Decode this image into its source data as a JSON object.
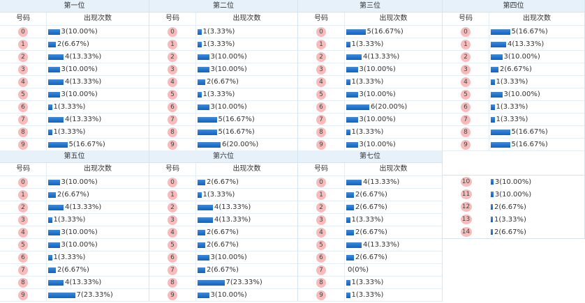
{
  "colors": {
    "ball": "#f6bcbc",
    "bar": "#1a6fcc",
    "header_bg": "#e6f1fa"
  },
  "col_headers": {
    "number": "号码",
    "count": "出现次数"
  },
  "positions": [
    {
      "title": "第一位",
      "rows": [
        {
          "n": "0",
          "c": 3,
          "p": "3(10.00%)"
        },
        {
          "n": "1",
          "c": 2,
          "p": "2(6.67%)"
        },
        {
          "n": "2",
          "c": 4,
          "p": "4(13.33%)"
        },
        {
          "n": "3",
          "c": 3,
          "p": "3(10.00%)"
        },
        {
          "n": "4",
          "c": 4,
          "p": "4(13.33%)"
        },
        {
          "n": "5",
          "c": 3,
          "p": "3(10.00%)"
        },
        {
          "n": "6",
          "c": 1,
          "p": "1(3.33%)"
        },
        {
          "n": "7",
          "c": 4,
          "p": "4(13.33%)"
        },
        {
          "n": "8",
          "c": 1,
          "p": "1(3.33%)"
        },
        {
          "n": "9",
          "c": 5,
          "p": "5(16.67%)"
        }
      ]
    },
    {
      "title": "第二位",
      "rows": [
        {
          "n": "0",
          "c": 1,
          "p": "1(3.33%)"
        },
        {
          "n": "1",
          "c": 1,
          "p": "1(3.33%)"
        },
        {
          "n": "2",
          "c": 3,
          "p": "3(10.00%)"
        },
        {
          "n": "3",
          "c": 3,
          "p": "3(10.00%)"
        },
        {
          "n": "4",
          "c": 2,
          "p": "2(6.67%)"
        },
        {
          "n": "5",
          "c": 1,
          "p": "1(3.33%)"
        },
        {
          "n": "6",
          "c": 3,
          "p": "3(10.00%)"
        },
        {
          "n": "7",
          "c": 5,
          "p": "5(16.67%)"
        },
        {
          "n": "8",
          "c": 5,
          "p": "5(16.67%)"
        },
        {
          "n": "9",
          "c": 6,
          "p": "6(20.00%)"
        }
      ]
    },
    {
      "title": "第三位",
      "rows": [
        {
          "n": "0",
          "c": 5,
          "p": "5(16.67%)"
        },
        {
          "n": "1",
          "c": 1,
          "p": "1(3.33%)"
        },
        {
          "n": "2",
          "c": 4,
          "p": "4(13.33%)"
        },
        {
          "n": "3",
          "c": 3,
          "p": "3(10.00%)"
        },
        {
          "n": "4",
          "c": 1,
          "p": "1(3.33%)"
        },
        {
          "n": "5",
          "c": 3,
          "p": "3(10.00%)"
        },
        {
          "n": "6",
          "c": 6,
          "p": "6(20.00%)"
        },
        {
          "n": "7",
          "c": 3,
          "p": "3(10.00%)"
        },
        {
          "n": "8",
          "c": 1,
          "p": "1(3.33%)"
        },
        {
          "n": "9",
          "c": 3,
          "p": "3(10.00%)"
        }
      ]
    },
    {
      "title": "第四位",
      "rows": [
        {
          "n": "0",
          "c": 5,
          "p": "5(16.67%)"
        },
        {
          "n": "1",
          "c": 4,
          "p": "4(13.33%)"
        },
        {
          "n": "2",
          "c": 3,
          "p": "3(10.00%)"
        },
        {
          "n": "3",
          "c": 2,
          "p": "2(6.67%)"
        },
        {
          "n": "4",
          "c": 1,
          "p": "1(3.33%)"
        },
        {
          "n": "5",
          "c": 3,
          "p": "3(10.00%)"
        },
        {
          "n": "6",
          "c": 1,
          "p": "1(3.33%)"
        },
        {
          "n": "7",
          "c": 1,
          "p": "1(3.33%)"
        },
        {
          "n": "8",
          "c": 5,
          "p": "5(16.67%)"
        },
        {
          "n": "9",
          "c": 5,
          "p": "5(16.67%)"
        }
      ]
    },
    {
      "title": "第五位",
      "rows": [
        {
          "n": "0",
          "c": 3,
          "p": "3(10.00%)"
        },
        {
          "n": "1",
          "c": 2,
          "p": "2(6.67%)"
        },
        {
          "n": "2",
          "c": 4,
          "p": "4(13.33%)"
        },
        {
          "n": "3",
          "c": 1,
          "p": "1(3.33%)"
        },
        {
          "n": "4",
          "c": 3,
          "p": "3(10.00%)"
        },
        {
          "n": "5",
          "c": 3,
          "p": "3(10.00%)"
        },
        {
          "n": "6",
          "c": 1,
          "p": "1(3.33%)"
        },
        {
          "n": "7",
          "c": 2,
          "p": "2(6.67%)"
        },
        {
          "n": "8",
          "c": 4,
          "p": "4(13.33%)"
        },
        {
          "n": "9",
          "c": 7,
          "p": "7(23.33%)"
        }
      ]
    },
    {
      "title": "第六位",
      "rows": [
        {
          "n": "0",
          "c": 2,
          "p": "2(6.67%)"
        },
        {
          "n": "1",
          "c": 1,
          "p": "1(3.33%)"
        },
        {
          "n": "2",
          "c": 4,
          "p": "4(13.33%)"
        },
        {
          "n": "3",
          "c": 4,
          "p": "4(13.33%)"
        },
        {
          "n": "4",
          "c": 2,
          "p": "2(6.67%)"
        },
        {
          "n": "5",
          "c": 2,
          "p": "2(6.67%)"
        },
        {
          "n": "6",
          "c": 3,
          "p": "3(10.00%)"
        },
        {
          "n": "7",
          "c": 2,
          "p": "2(6.67%)"
        },
        {
          "n": "8",
          "c": 7,
          "p": "7(23.33%)"
        },
        {
          "n": "9",
          "c": 3,
          "p": "3(10.00%)"
        }
      ]
    },
    {
      "title": "第七位",
      "rows": [
        {
          "n": "0",
          "c": 4,
          "p": "4(13.33%)"
        },
        {
          "n": "1",
          "c": 2,
          "p": "2(6.67%)"
        },
        {
          "n": "2",
          "c": 2,
          "p": "2(6.67%)"
        },
        {
          "n": "3",
          "c": 1,
          "p": "1(3.33%)"
        },
        {
          "n": "4",
          "c": 2,
          "p": "2(6.67%)"
        },
        {
          "n": "5",
          "c": 4,
          "p": "4(13.33%)"
        },
        {
          "n": "6",
          "c": 2,
          "p": "2(6.67%)"
        },
        {
          "n": "7",
          "c": 0,
          "p": "0(0%)"
        },
        {
          "n": "8",
          "c": 1,
          "p": "1(3.33%)"
        },
        {
          "n": "9",
          "c": 1,
          "p": "1(3.33%)"
        }
      ]
    }
  ],
  "extra": {
    "rows": [
      {
        "n": "10",
        "c": 3,
        "p": "3(10.00%)"
      },
      {
        "n": "11",
        "c": 3,
        "p": "3(10.00%)"
      },
      {
        "n": "12",
        "c": 2,
        "p": "2(6.67%)"
      },
      {
        "n": "13",
        "c": 1,
        "p": "1(3.33%)"
      },
      {
        "n": "14",
        "c": 2,
        "p": "2(6.67%)"
      }
    ]
  }
}
